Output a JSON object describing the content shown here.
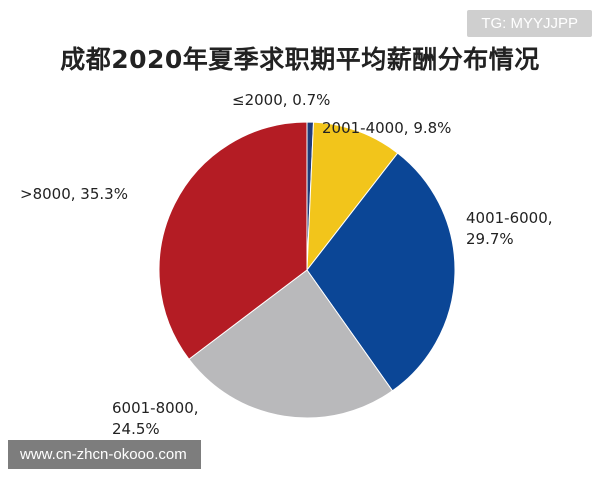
{
  "watermark_top": "TG: MYYJJPP",
  "watermark_bottom": "www.cn-zhcn-okooo.com",
  "chart_data": {
    "type": "pie",
    "title": "成都2020年夏季求职期平均薪酬分布情况",
    "slices": [
      {
        "label": "≤2000",
        "value": 0.7,
        "value_text": "0.7%",
        "color": "#1f3b7a"
      },
      {
        "label": "2001-4000",
        "value": 9.8,
        "value_text": "9.8%",
        "color": "#f2c51b"
      },
      {
        "label": "4001-6000",
        "value": 29.7,
        "value_text": "29.7%",
        "color": "#0b4696"
      },
      {
        "label": "6001-8000",
        "value": 24.5,
        "value_text": "24.5%",
        "color": "#b9b9bb"
      },
      {
        "label": ">8000",
        "value": 35.3,
        "value_text": "35.3%",
        "color": "#b41c24"
      }
    ],
    "start_angle": "12 o'clock",
    "direction": "clockwise"
  }
}
